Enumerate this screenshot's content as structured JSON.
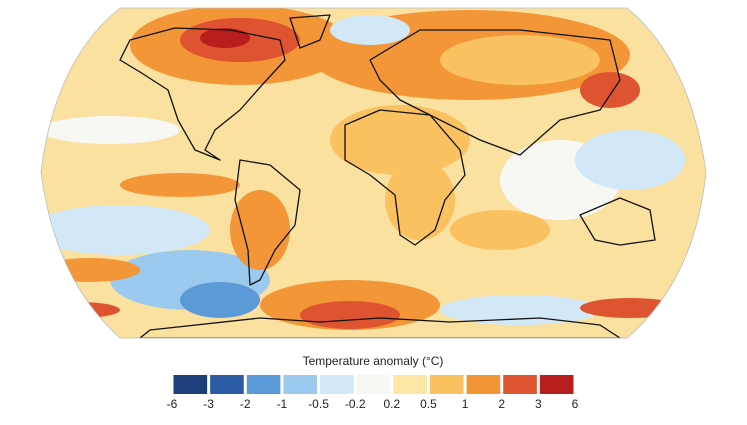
{
  "legend": {
    "title": "Temperature anomaly (°C)",
    "ticks": [
      -6,
      -3,
      -2,
      -1,
      -0.5,
      -0.2,
      0.2,
      0.5,
      1,
      2,
      3,
      6
    ],
    "colors": [
      "#1c3f7a",
      "#2a5ba3",
      "#5b9ad6",
      "#9ccaee",
      "#d3e8f7",
      "#f7f7f4",
      "#fce6a6",
      "#f9c160",
      "#f29638",
      "#de5430",
      "#b71f1f"
    ]
  }
}
